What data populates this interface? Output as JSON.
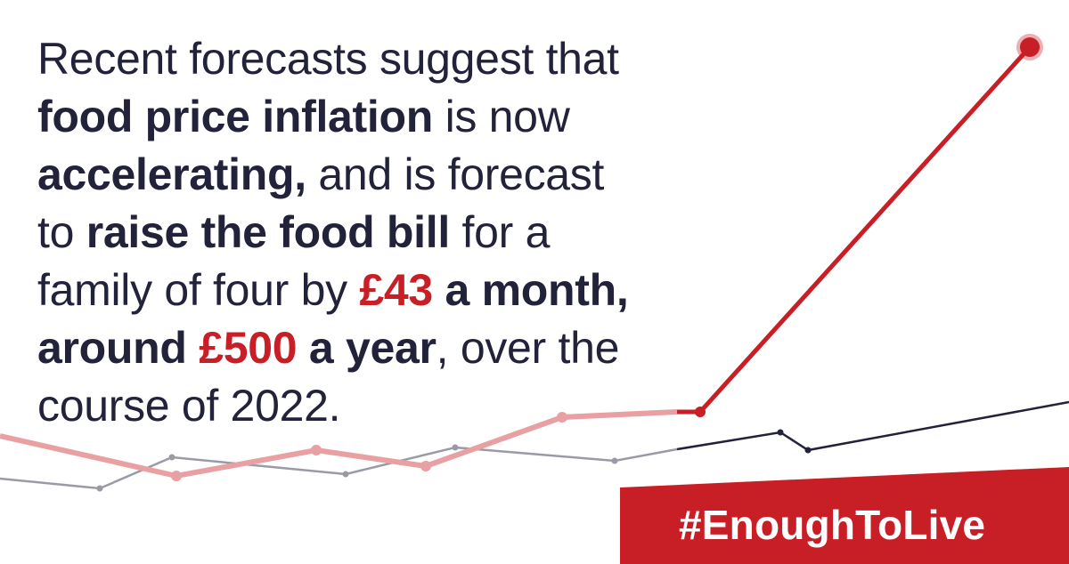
{
  "headline": {
    "line1": {
      "t1": "Recent forecasts suggest that"
    },
    "line2": {
      "b1": "food price inflation",
      "t1": " is now"
    },
    "line3": {
      "b1": "accelerating,",
      "t1": " and is forecast"
    },
    "line4": {
      "t1": "to ",
      "b1": "raise the food bill",
      "t2": " for a"
    },
    "line5": {
      "t1": "family of four by ",
      "m1": "£43",
      "b1": " a month,"
    },
    "line6": {
      "b1": "around ",
      "m1": "£500",
      "b2": " a year",
      "t1": ", over the"
    },
    "line7": {
      "t1": "course of 2022."
    }
  },
  "banner": {
    "text": "#EnoughToLive"
  },
  "colors": {
    "red": "#c81e26",
    "pink": "#e8a0a3",
    "navy": "#22223a",
    "grey": "#9a9aa6"
  }
}
